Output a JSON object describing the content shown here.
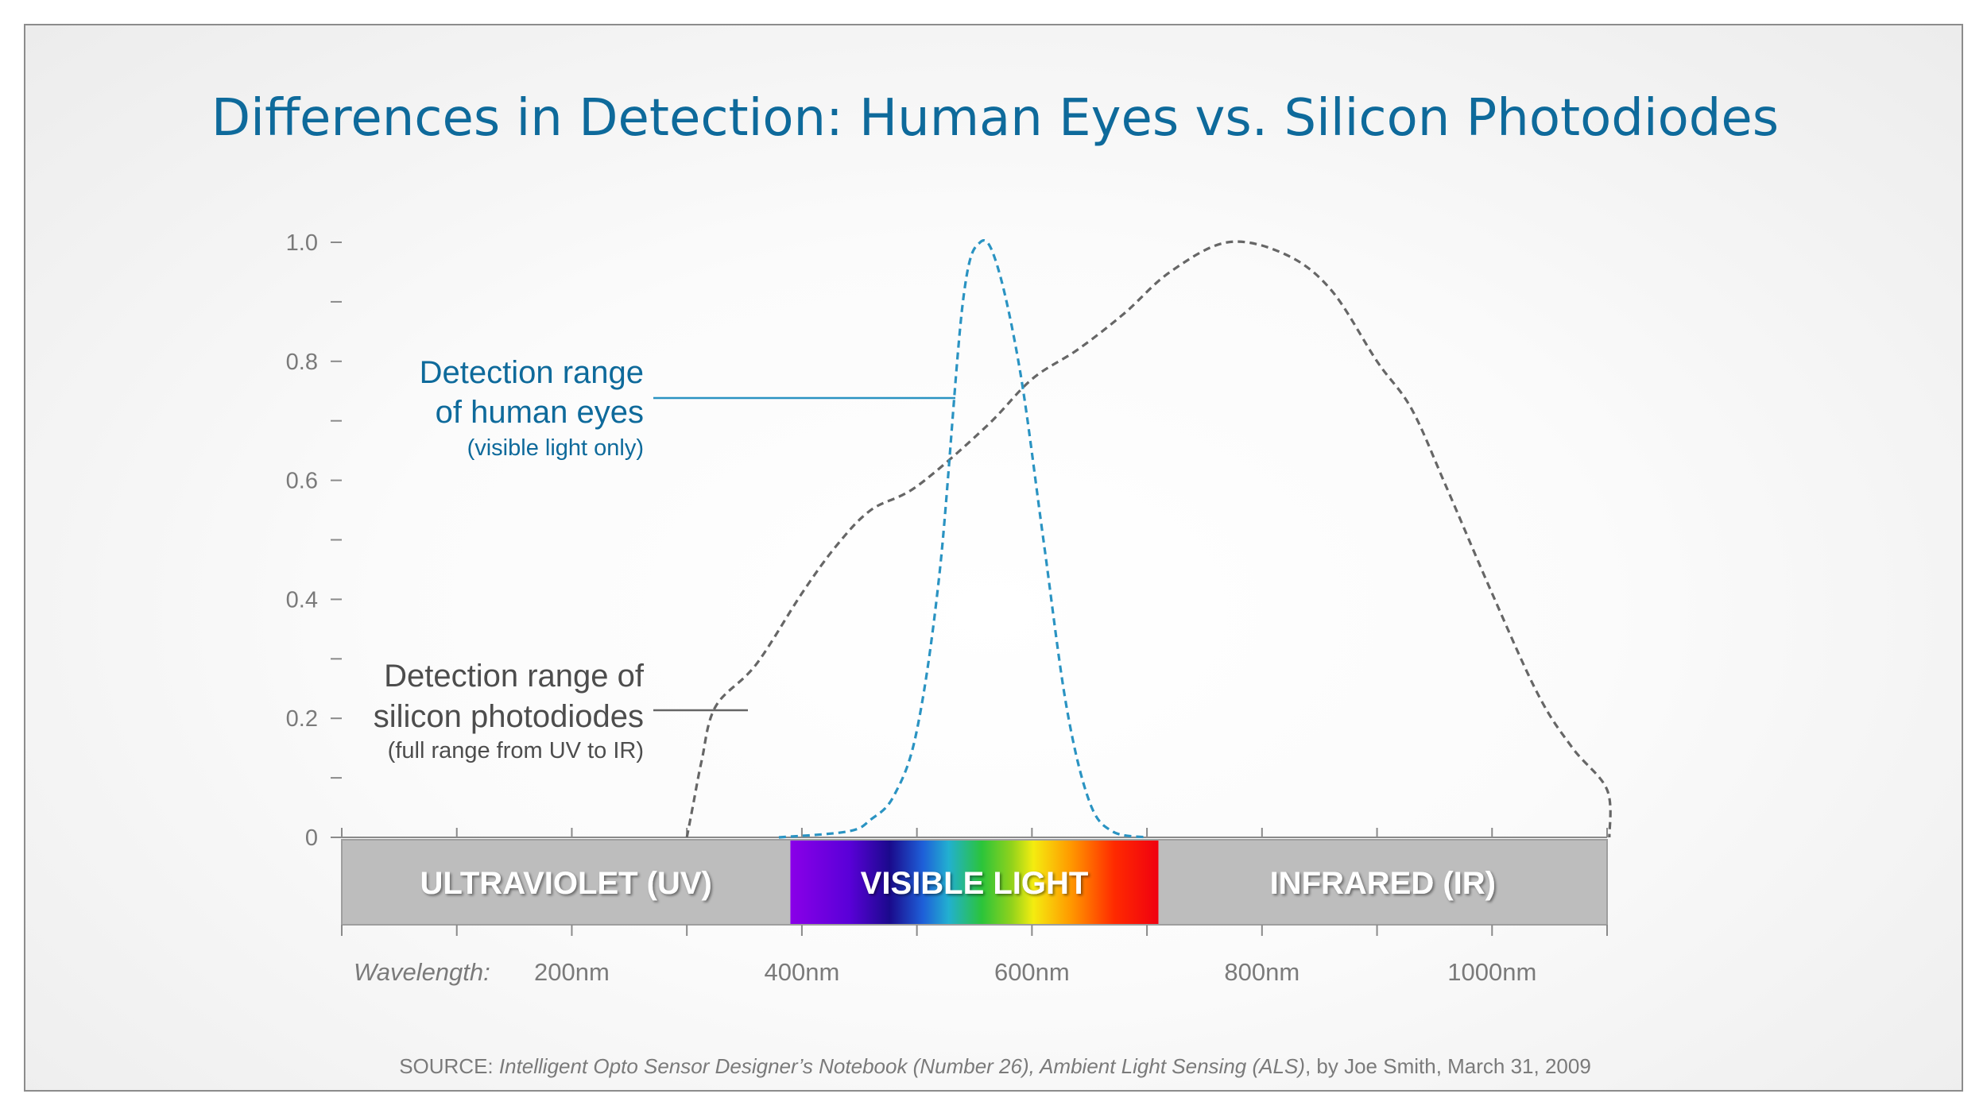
{
  "chart_data": {
    "type": "line",
    "title": "Differences in Detection:  Human Eyes vs. Silicon Photodiodes",
    "xlabel": "Wavelength:",
    "x_ticks": [
      "200nm",
      "400nm",
      "600nm",
      "800nm",
      "1000nm"
    ],
    "x_tick_values": [
      200,
      400,
      600,
      800,
      1000
    ],
    "xlim": [
      0,
      1100
    ],
    "y_ticks": [
      "0",
      "0.2",
      "0.4",
      "0.6",
      "0.8",
      "1.0"
    ],
    "y_tick_values": [
      0,
      0.2,
      0.4,
      0.6,
      0.8,
      1.0
    ],
    "ylim": [
      0,
      1.0
    ],
    "grid": false,
    "series": [
      {
        "name": "silicon photodiodes",
        "color": "#666666",
        "points": [
          [
            300,
            0.0
          ],
          [
            305,
            0.05
          ],
          [
            313,
            0.13
          ],
          [
            325,
            0.22
          ],
          [
            360,
            0.29
          ],
          [
            400,
            0.41
          ],
          [
            430,
            0.49
          ],
          [
            460,
            0.55
          ],
          [
            500,
            0.59
          ],
          [
            560,
            0.69
          ],
          [
            600,
            0.77
          ],
          [
            640,
            0.82
          ],
          [
            680,
            0.88
          ],
          [
            720,
            0.95
          ],
          [
            770,
            1.0
          ],
          [
            820,
            0.98
          ],
          [
            860,
            0.92
          ],
          [
            900,
            0.8
          ],
          [
            930,
            0.72
          ],
          [
            960,
            0.59
          ],
          [
            1000,
            0.41
          ],
          [
            1040,
            0.24
          ],
          [
            1070,
            0.15
          ],
          [
            1100,
            0.08
          ],
          [
            1102,
            0.0
          ]
        ]
      },
      {
        "name": "human eyes",
        "color": "#2a93c2",
        "points": [
          [
            380,
            0.0
          ],
          [
            440,
            0.01
          ],
          [
            460,
            0.03
          ],
          [
            480,
            0.07
          ],
          [
            500,
            0.18
          ],
          [
            520,
            0.45
          ],
          [
            540,
            0.9
          ],
          [
            555,
            1.0
          ],
          [
            570,
            0.96
          ],
          [
            590,
            0.78
          ],
          [
            610,
            0.5
          ],
          [
            630,
            0.22
          ],
          [
            650,
            0.06
          ],
          [
            670,
            0.01
          ],
          [
            700,
            0.0
          ]
        ]
      }
    ],
    "bands": [
      {
        "label": "ULTRAVIOLET (UV)",
        "from": 0,
        "to": 390
      },
      {
        "label": "VISIBLE LIGHT",
        "from": 390,
        "to": 710
      },
      {
        "label": "INFRARED (IR)",
        "from": 710,
        "to": 1100
      }
    ],
    "annotations": {
      "eyes": {
        "line1": "Detection range",
        "line2": "of human eyes",
        "note": "(visible light only)",
        "color": "#0e6a9b"
      },
      "silicon": {
        "line1": "Detection range of",
        "line2": "silicon photodiodes",
        "note": "(full range from UV to IR)",
        "color": "#4d4d4d"
      }
    },
    "source": {
      "prefix": "SOURCE:",
      "italic": "Intelligent Opto Sensor Designer’s Notebook (Number 26), Ambient Light Sensing (ALS)",
      "suffix": ", by Joe Smith, March 31, 2009"
    },
    "colors": {
      "title": "#0e6a9b",
      "band": "#bdbdbd",
      "axis": "#8a8a8a",
      "label": "#7a7a7a"
    }
  }
}
